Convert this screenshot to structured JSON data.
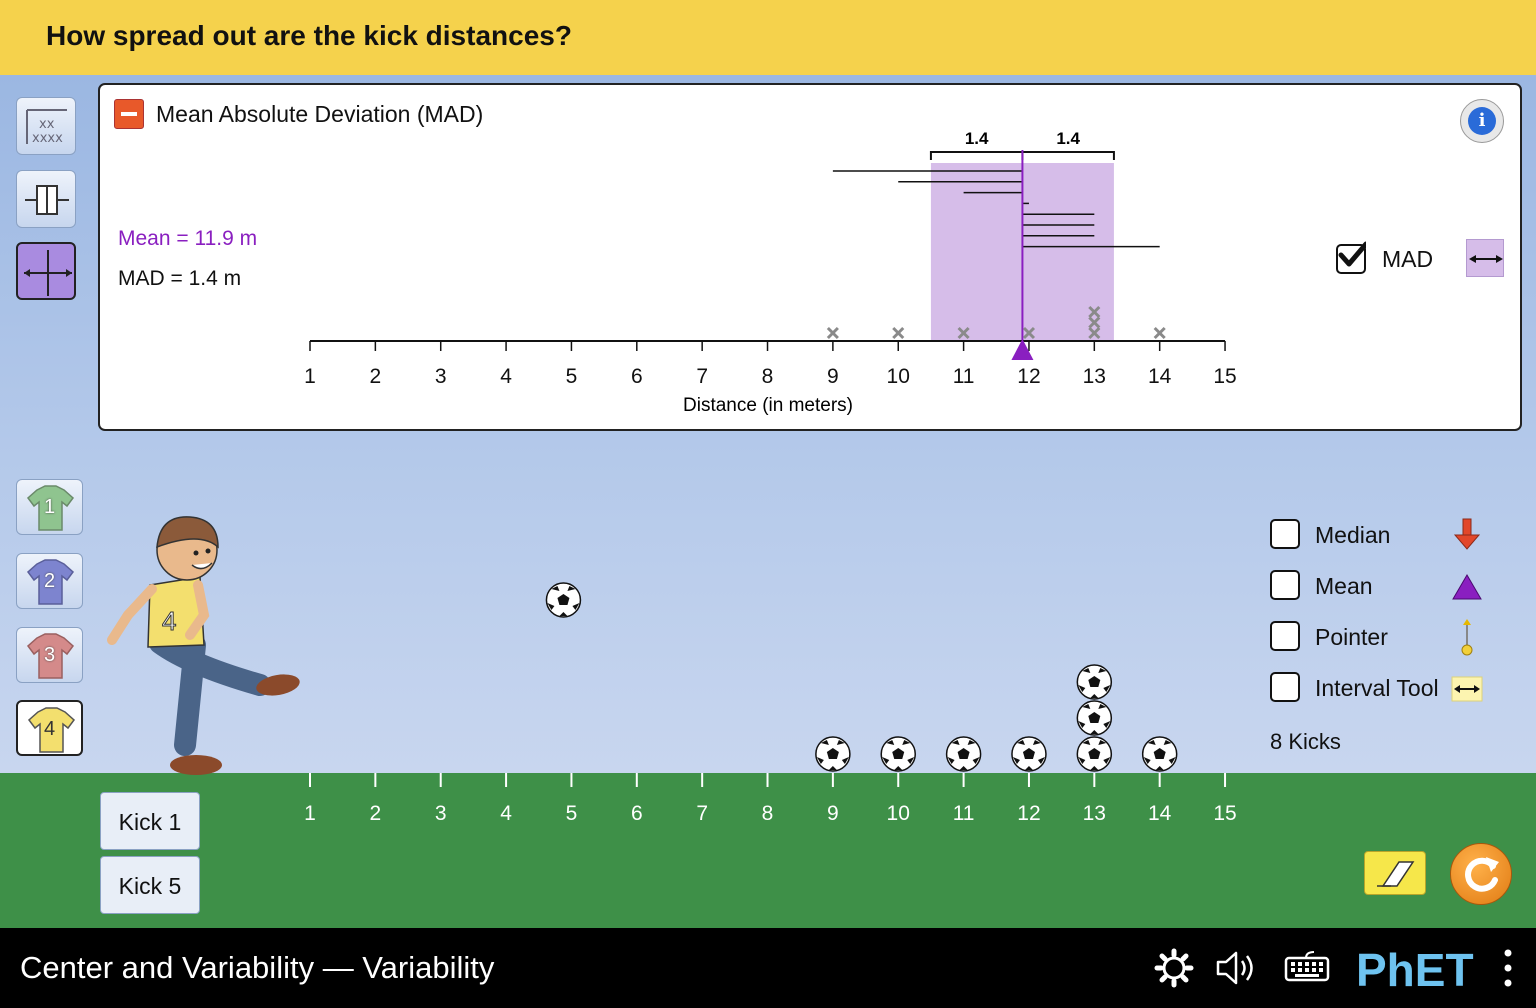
{
  "header": {
    "question": "How spread out are the kick distances?"
  },
  "panel": {
    "title": "Mean Absolute Deviation (MAD)",
    "mean_label": "Mean = 11.9 m",
    "mad_label": "MAD = 1.4 m",
    "mad_left_value": "1.4",
    "mad_right_value": "1.4",
    "mad_checkbox_label": "MAD",
    "mad_checked": true,
    "axis_label": "Distance (in meters)",
    "tick_labels": [
      "1",
      "2",
      "3",
      "4",
      "5",
      "6",
      "7",
      "8",
      "9",
      "10",
      "11",
      "12",
      "13",
      "14",
      "15"
    ],
    "mean_value": 11.9,
    "mad_value": 1.4
  },
  "chart_data": {
    "type": "scatter",
    "xlabel": "Distance (in meters)",
    "xlim": [
      1,
      15
    ],
    "x": [
      9,
      10,
      11,
      12,
      13,
      13,
      13,
      14
    ],
    "mean": 11.9,
    "mad": 1.4
  },
  "field": {
    "tick_labels": [
      "1",
      "2",
      "3",
      "4",
      "5",
      "6",
      "7",
      "8",
      "9",
      "10",
      "11",
      "12",
      "13",
      "14",
      "15"
    ],
    "ball_distances": [
      9,
      10,
      11,
      12,
      13,
      13,
      13,
      14
    ],
    "ball_in_air_distance": 5
  },
  "kick_buttons": {
    "kick1": "Kick 1",
    "kick5": "Kick 5"
  },
  "kickers": [
    "1",
    "2",
    "3",
    "4"
  ],
  "kicker_colors": [
    "#8fc48f",
    "#7d84cf",
    "#d48a8a",
    "#f3df6e"
  ],
  "legend": {
    "median": {
      "label": "Median",
      "checked": false
    },
    "mean": {
      "label": "Mean",
      "checked": false
    },
    "pointer": {
      "label": "Pointer",
      "checked": false
    },
    "interval_tool": {
      "label": "Interval Tool",
      "checked": false
    }
  },
  "kicks_count": "8 Kicks",
  "navbar": {
    "sim_title": "Center and Variability — Variability",
    "brand": "PhET"
  },
  "colors": {
    "header": "#f5d24c",
    "mean": "#8a1fc0",
    "mad_fill": "#d6bde9",
    "ground": "#3e9048",
    "median_arrow": "#e2472a"
  }
}
